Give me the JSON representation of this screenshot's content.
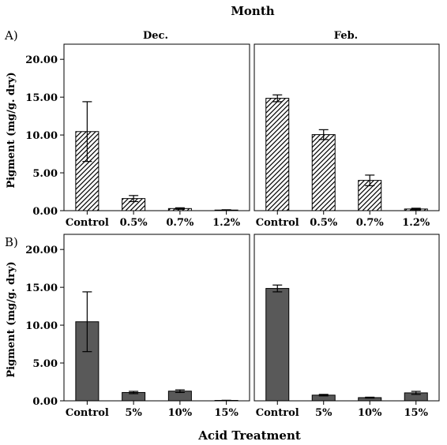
{
  "figure": {
    "top_title": "Month",
    "x_title": "Acid Treatment",
    "y_title": "Pigment (mg/g. dry)",
    "columns": [
      "Dec.",
      "Feb."
    ],
    "rows": [
      "A)",
      "B)"
    ]
  },
  "chart_data": [
    {
      "type": "bar",
      "panel": "A) Dec.",
      "categories": [
        "Control",
        "0.5%",
        "0.7%",
        "1.2%"
      ],
      "values": [
        10.45,
        1.6,
        0.28,
        0.08
      ],
      "error_low": [
        6.5,
        1.2,
        0.18,
        0.04
      ],
      "error_high": [
        14.4,
        2.0,
        0.38,
        0.12
      ],
      "ylim": [
        0,
        22
      ],
      "yticks": [
        "0.00",
        "5.00",
        "10.00",
        "15.00",
        "20.00"
      ],
      "fill": "hatched",
      "ylabel": "Pigment (mg/g. dry)"
    },
    {
      "type": "bar",
      "panel": "A) Feb.",
      "categories": [
        "Control",
        "0.5%",
        "0.7%",
        "1.2%"
      ],
      "values": [
        14.85,
        10.05,
        4.0,
        0.22
      ],
      "error_low": [
        14.4,
        9.4,
        3.3,
        0.12
      ],
      "error_high": [
        15.3,
        10.7,
        4.7,
        0.32
      ],
      "ylim": [
        0,
        22
      ],
      "fill": "hatched"
    },
    {
      "type": "bar",
      "panel": "B) Dec.",
      "categories": [
        "Control",
        "5%",
        "10%",
        "15%"
      ],
      "values": [
        10.45,
        1.1,
        1.28,
        0.05
      ],
      "error_low": [
        6.5,
        0.95,
        1.1,
        0.03
      ],
      "error_high": [
        14.4,
        1.25,
        1.45,
        0.07
      ],
      "ylim": [
        0,
        22
      ],
      "yticks": [
        "0.00",
        "5.00",
        "10.00",
        "15.00",
        "20.00"
      ],
      "fill": "solid",
      "color": "#595959",
      "ylabel": "Pigment (mg/g. dry)"
    },
    {
      "type": "bar",
      "panel": "B) Feb.",
      "categories": [
        "Control",
        "5%",
        "10%",
        "15%"
      ],
      "values": [
        14.85,
        0.75,
        0.42,
        1.05
      ],
      "error_low": [
        14.4,
        0.65,
        0.36,
        0.85
      ],
      "error_high": [
        15.3,
        0.85,
        0.48,
        1.25
      ],
      "ylim": [
        0,
        22
      ],
      "fill": "solid",
      "color": "#595959"
    }
  ]
}
